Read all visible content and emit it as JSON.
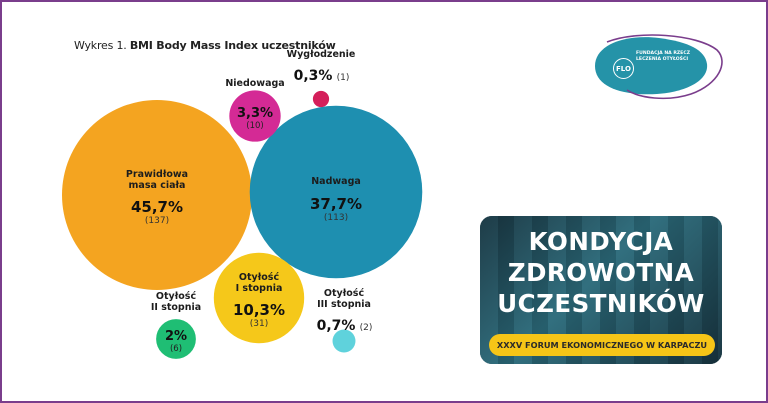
{
  "figure": {
    "title_prefix": "Wykres 1. ",
    "title_main": "BMI Body Mass Index uczestników"
  },
  "chart_data": {
    "type": "bubble",
    "title": "Wykres 1. BMI Body Mass Index uczestników",
    "series": [
      {
        "name": "Prawidłowa masa ciała",
        "label_lines": [
          "Prawidłowa",
          "masa ciała"
        ],
        "percent": "45,7%",
        "count": "(137)",
        "value": 137,
        "color": "#f4a420"
      },
      {
        "name": "Nadwaga",
        "label_lines": [
          "Nadwaga"
        ],
        "percent": "37,7%",
        "count": "(113)",
        "value": 113,
        "color": "#1e8fb0"
      },
      {
        "name": "Otyłość I stopnia",
        "label_lines": [
          "Otyłość",
          "I stopnia"
        ],
        "percent": "10,3%",
        "count": "(31)",
        "value": 31,
        "color": "#f5c81a"
      },
      {
        "name": "Niedowaga",
        "label_lines": [
          "Niedowaga"
        ],
        "percent": "3,3%",
        "count": "(10)",
        "value": 10,
        "color": "#d42a95"
      },
      {
        "name": "Otyłość II stopnia",
        "label_lines": [
          "Otyłość",
          "II stopnia"
        ],
        "percent": "2%",
        "count": "(6)",
        "value": 6,
        "color": "#1fbe74"
      },
      {
        "name": "Otyłość III stopnia",
        "label_lines": [
          "Otyłość",
          "III stopnia"
        ],
        "percent": "0,7%",
        "count": "(2)",
        "value": 2,
        "color": "#5fd2dc"
      },
      {
        "name": "Wygłodzenie",
        "label_lines": [
          "Wygłodzenie"
        ],
        "percent": "0,3%",
        "count": "(1)",
        "value": 1,
        "color": "#d41f5a"
      }
    ]
  },
  "logo": {
    "mark": "FLO",
    "text": "FUNDACJA NA RZECZ LECZENIA OTYŁOŚCI",
    "color": "#2593a8",
    "outline_color": "#7a3d8c"
  },
  "banner": {
    "title_lines": [
      "KONDYCJA",
      "ZDROWOTNA",
      "UCZESTNIKÓW"
    ],
    "subtitle": "XXXV FORUM EKONOMICZNEGO W KARPACZU",
    "accent": "#f6c517"
  },
  "frame_color": "#7a3d8c"
}
